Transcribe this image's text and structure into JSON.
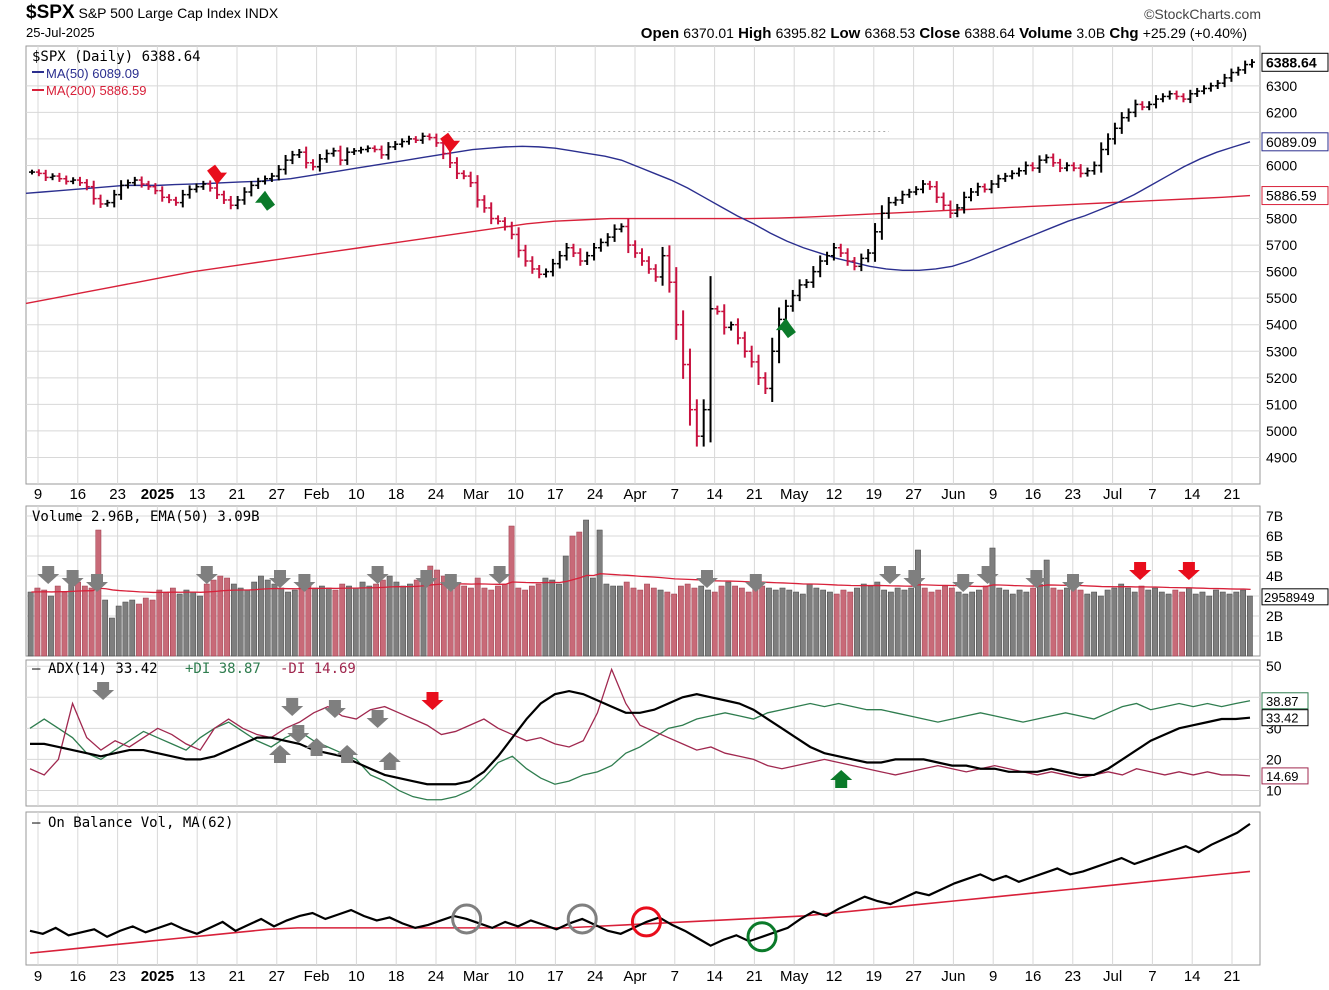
{
  "header": {
    "symbol": "$SPX",
    "name": "S&P 500 Large Cap Index",
    "exchange": "INDX",
    "date": "25-Jul-2025",
    "brand": "©StockCharts.com",
    "open_label": "Open",
    "open": "6370.01",
    "high_label": "High",
    "high": "6395.82",
    "low_label": "Low",
    "low": "6368.53",
    "close_label": "Close",
    "close": "6388.64",
    "volume_label": "Volume",
    "volume": "3.0B",
    "chg_label": "Chg",
    "chg": "+25.29 (+0.40%)"
  },
  "colors": {
    "up": "#000000",
    "down": "#c8103e",
    "ma50": "#2b2f8f",
    "ma200": "#d8213a",
    "plusdi": "#2f7d4f",
    "minusdi": "#a0284f",
    "vol_down": "#c86a78",
    "vol_up": "#7f7f7f",
    "grid": "#d8d8d8",
    "buy": "#0b7a2a",
    "sell": "#e80d1c"
  },
  "chart_data": [
    {
      "type": "ohlc",
      "panel": "price",
      "legend": [
        "$SPX (Daily) 6388.64",
        "MA(50) 6089.09",
        "MA(200) 5886.59"
      ],
      "ylim": [
        4800,
        6450
      ],
      "y_ticks": [
        "4900",
        "5000",
        "5100",
        "5200",
        "5300",
        "5400",
        "5500",
        "5600",
        "5700",
        "5800",
        "6000",
        "6100",
        "6200",
        "6300"
      ],
      "last_labels": [
        "6388.64",
        "6089.09",
        "5886.59"
      ],
      "last_values": [
        6388.64,
        6089.09,
        5886.59
      ],
      "x_ticks": [
        "9",
        "16",
        "23",
        "2025",
        "13",
        "21",
        "27",
        "Feb",
        "10",
        "18",
        "24",
        "Mar",
        "10",
        "17",
        "24",
        "Apr",
        "7",
        "14",
        "21",
        "May",
        "12",
        "19",
        "27",
        "Jun",
        "9",
        "16",
        "23",
        "Jul",
        "7",
        "14",
        "21"
      ],
      "closes": [
        5975,
        5970,
        5955,
        5960,
        5950,
        5940,
        5945,
        5935,
        5920,
        5875,
        5855,
        5860,
        5890,
        5925,
        5935,
        5945,
        5930,
        5920,
        5905,
        5880,
        5870,
        5860,
        5890,
        5910,
        5920,
        5930,
        5915,
        5890,
        5870,
        5850,
        5870,
        5900,
        5925,
        5940,
        5950,
        5960,
        5985,
        6020,
        6040,
        6050,
        6010,
        5995,
        6025,
        6045,
        6055,
        6020,
        6050,
        6055,
        6060,
        6065,
        6060,
        6040,
        6070,
        6080,
        6090,
        6100,
        6095,
        6110,
        6105,
        6085,
        6045,
        6010,
        5970,
        5960,
        5935,
        5870,
        5840,
        5800,
        5790,
        5770,
        5740,
        5680,
        5640,
        5610,
        5590,
        5600,
        5630,
        5660,
        5690,
        5670,
        5640,
        5660,
        5690,
        5710,
        5730,
        5760,
        5770,
        5700,
        5670,
        5640,
        5610,
        5580,
        5660,
        5560,
        5400,
        5250,
        5080,
        4980,
        5080,
        5460,
        5450,
        5390,
        5400,
        5350,
        5300,
        5260,
        5200,
        5160,
        5300,
        5420,
        5470,
        5510,
        5550,
        5560,
        5600,
        5640,
        5660,
        5690,
        5670,
        5640,
        5620,
        5650,
        5670,
        5750,
        5820,
        5860,
        5870,
        5890,
        5900,
        5910,
        5930,
        5920,
        5880,
        5850,
        5820,
        5840,
        5880,
        5900,
        5920,
        5910,
        5930,
        5950,
        5960,
        5970,
        5980,
        6000,
        5990,
        6020,
        6030,
        6010,
        5990,
        6000,
        5990,
        5970,
        5980,
        6000,
        6060,
        6100,
        6140,
        6180,
        6200,
        6230,
        6220,
        6230,
        6250,
        6260,
        6270,
        6260,
        6250,
        6270,
        6280,
        6290,
        6300,
        6310,
        6330,
        6350,
        6360,
        6380,
        6389
      ],
      "ma50": [
        5895,
        5900,
        5905,
        5910,
        5915,
        5920,
        5925,
        5925,
        5925,
        5928,
        5930,
        5932,
        5935,
        5938,
        5940,
        5945,
        5950,
        5960,
        5970,
        5980,
        5990,
        6000,
        6010,
        6020,
        6030,
        6040,
        6050,
        6060,
        6065,
        6070,
        6072,
        6070,
        6065,
        6055,
        6045,
        6035,
        6020,
        5995,
        5970,
        5945,
        5915,
        5880,
        5845,
        5810,
        5780,
        5745,
        5715,
        5690,
        5670,
        5650,
        5635,
        5620,
        5610,
        5605,
        5605,
        5610,
        5620,
        5640,
        5665,
        5690,
        5715,
        5740,
        5765,
        5790,
        5810,
        5835,
        5860,
        5890,
        5925,
        5960,
        5995,
        6025,
        6050,
        6070,
        6089
      ],
      "ma200": [
        5480,
        5500,
        5520,
        5540,
        5560,
        5580,
        5600,
        5615,
        5630,
        5645,
        5660,
        5675,
        5690,
        5705,
        5720,
        5735,
        5750,
        5765,
        5780,
        5790,
        5795,
        5800,
        5800,
        5800,
        5800,
        5800,
        5800,
        5802,
        5805,
        5810,
        5815,
        5820,
        5825,
        5830,
        5835,
        5840,
        5845,
        5850,
        5855,
        5860,
        5865,
        5870,
        5875,
        5880,
        5886.59
      ],
      "signals": [
        {
          "type": "sell",
          "at": 0.15
        },
        {
          "type": "buy",
          "at": 0.19
        },
        {
          "type": "sell",
          "at": 0.34
        },
        {
          "type": "buy",
          "at": 0.62
        }
      ]
    },
    {
      "type": "bar",
      "panel": "volume",
      "legend": "Volume 2.96B, EMA(50) 3.09B",
      "ylim": [
        0,
        7.5
      ],
      "y_ticks": [
        "1B",
        "2B",
        "3B",
        "4B",
        "5B",
        "6B",
        "7B"
      ],
      "last_label": "2958949",
      "last_value": 2.958949,
      "values": [
        3.2,
        3.4,
        3.3,
        3.0,
        3.5,
        3.2,
        3.6,
        3.7,
        3.5,
        3.4,
        6.3,
        2.8,
        1.9,
        2.5,
        2.7,
        2.8,
        2.6,
        2.9,
        2.8,
        3.3,
        3.2,
        3.4,
        3.1,
        3.3,
        3.2,
        3.0,
        3.6,
        3.8,
        4.0,
        3.9,
        3.6,
        3.4,
        3.3,
        3.7,
        4.0,
        3.8,
        3.6,
        3.4,
        3.2,
        3.3,
        3.5,
        3.6,
        3.4,
        3.5,
        3.4,
        3.3,
        3.6,
        3.5,
        3.4,
        3.7,
        3.5,
        3.6,
        3.8,
        4.0,
        3.7,
        3.5,
        3.6,
        3.8,
        4.2,
        4.5,
        4.3,
        4.0,
        3.8,
        3.6,
        3.5,
        3.4,
        3.9,
        3.4,
        3.3,
        3.5,
        3.6,
        6.5,
        3.4,
        3.3,
        3.5,
        3.6,
        3.9,
        3.8,
        3.6,
        5.0,
        6.0,
        6.2,
        6.8,
        3.9,
        6.3,
        3.6,
        3.5,
        3.5,
        3.7,
        3.4,
        3.3,
        3.6,
        3.4,
        3.3,
        3.2,
        3.1,
        3.5,
        3.6,
        3.4,
        3.5,
        3.3,
        3.2,
        3.5,
        3.7,
        3.5,
        3.4,
        3.2,
        3.6,
        3.5,
        3.4,
        3.3,
        3.4,
        3.3,
        3.2,
        3.1,
        3.6,
        3.4,
        3.3,
        3.2,
        3.1,
        3.3,
        3.2,
        3.4,
        3.6,
        3.5,
        3.7,
        3.3,
        3.2,
        3.4,
        3.3,
        3.4,
        5.3,
        3.4,
        3.2,
        3.3,
        3.5,
        3.4,
        3.2,
        3.1,
        3.2,
        3.3,
        3.5,
        5.4,
        3.4,
        3.3,
        3.1,
        3.3,
        3.2,
        3.4,
        3.6,
        4.8,
        3.4,
        3.3,
        3.4,
        3.5,
        3.3,
        3.1,
        3.2,
        3.0,
        3.3,
        3.4,
        3.6,
        3.4,
        3.2,
        3.5,
        3.3,
        3.4,
        3.2,
        3.1,
        3.3,
        3.2,
        3.4,
        3.1,
        3.2,
        3.0,
        3.3,
        3.2,
        3.1,
        3.2,
        3.3,
        3.0
      ]
    },
    {
      "type": "line",
      "panel": "adx",
      "legend": [
        "ADX(14) 33.42",
        "+DI 38.87",
        "-DI 14.69"
      ],
      "ylim": [
        5,
        52
      ],
      "y_ticks": [
        "10",
        "20",
        "30",
        "40",
        "50"
      ],
      "last_labels": [
        "38.87",
        "33.42",
        "14.69"
      ],
      "last_values": [
        38.87,
        33.42,
        14.69
      ],
      "adx": [
        25,
        25,
        24,
        23,
        22,
        21,
        22,
        23,
        23,
        22,
        21,
        20,
        20,
        21,
        23,
        25,
        27,
        27,
        26,
        25,
        23,
        22,
        21,
        19,
        17,
        15,
        14,
        13,
        12,
        12,
        12,
        13,
        16,
        21,
        27,
        33,
        38,
        41,
        42,
        41,
        39,
        37,
        35,
        35,
        36,
        38,
        40,
        41,
        40,
        39,
        38,
        36,
        33,
        30,
        27,
        24,
        22,
        21,
        20,
        19,
        19,
        20,
        20,
        20,
        19,
        18,
        18,
        17,
        17,
        16,
        16,
        16,
        17,
        16,
        15,
        15,
        17,
        20,
        23,
        26,
        28,
        30,
        31,
        32,
        33,
        33,
        33.42
      ],
      "plusdi": [
        30,
        33,
        30,
        27,
        22,
        20,
        23,
        26,
        29,
        27,
        25,
        23,
        27,
        30,
        32,
        29,
        26,
        24,
        27,
        29,
        26,
        24,
        22,
        20,
        15,
        13,
        10,
        8,
        7,
        7,
        8,
        10,
        14,
        19,
        21,
        17,
        14,
        12,
        13,
        15,
        16,
        18,
        22,
        24,
        27,
        30,
        31,
        33,
        34,
        35,
        34,
        33,
        35,
        36,
        37,
        38,
        37,
        38,
        37,
        36,
        36,
        35,
        34,
        33,
        32,
        33,
        34,
        35,
        34,
        33,
        32,
        33,
        34,
        35,
        34,
        33,
        35,
        37,
        38,
        36,
        37,
        38,
        37,
        38,
        37,
        38,
        38.87
      ],
      "minusdi": [
        17,
        15,
        20,
        38,
        27,
        23,
        26,
        24,
        27,
        30,
        28,
        25,
        23,
        30,
        33,
        30,
        28,
        27,
        30,
        32,
        35,
        37,
        34,
        33,
        36,
        37,
        35,
        33,
        31,
        28,
        29,
        31,
        33,
        30,
        28,
        26,
        27,
        25,
        24,
        26,
        35,
        49,
        38,
        31,
        29,
        27,
        25,
        23,
        24,
        22,
        21,
        20,
        18,
        17,
        18,
        19,
        20,
        19,
        18,
        17,
        16,
        15,
        16,
        17,
        18,
        17,
        16,
        17,
        18,
        17,
        16,
        15,
        16,
        15,
        14,
        15,
        16,
        15,
        17,
        16,
        15,
        16,
        15,
        16,
        15,
        15,
        14.69
      ]
    },
    {
      "type": "line",
      "panel": "obv",
      "legend": "On Balance Vol, MA(62)",
      "x_ticks": [
        "9",
        "16",
        "23",
        "2025",
        "13",
        "21",
        "27",
        "Feb",
        "10",
        "18",
        "24",
        "Mar",
        "10",
        "17",
        "24",
        "Apr",
        "7",
        "14",
        "21",
        "May",
        "12",
        "19",
        "27",
        "Jun",
        "9",
        "16",
        "23",
        "Jul",
        "7",
        "14",
        "21"
      ],
      "obv": [
        50,
        48,
        52,
        47,
        49,
        51,
        46,
        50,
        53,
        49,
        52,
        55,
        51,
        48,
        52,
        56,
        50,
        54,
        58,
        53,
        57,
        60,
        62,
        58,
        61,
        64,
        60,
        57,
        59,
        55,
        52,
        54,
        57,
        60,
        58,
        55,
        52,
        56,
        53,
        57,
        54,
        51,
        55,
        58,
        54,
        50,
        48,
        52,
        56,
        59,
        54,
        50,
        45,
        40,
        44,
        47,
        43,
        46,
        49,
        52,
        58,
        63,
        60,
        65,
        69,
        73,
        70,
        68,
        72,
        76,
        74,
        78,
        82,
        85,
        88,
        84,
        87,
        83,
        86,
        89,
        92,
        88,
        90,
        93,
        96,
        99,
        95,
        98,
        101,
        104,
        107,
        103,
        108,
        112,
        116,
        122
      ],
      "ma62": [
        35,
        37,
        39,
        41,
        43,
        45,
        47,
        49,
        51,
        52,
        52,
        52,
        52,
        52,
        52,
        52,
        52,
        52,
        52,
        53,
        54,
        55,
        56,
        57,
        58,
        59,
        60,
        62,
        64,
        66,
        68,
        70,
        72,
        74,
        76,
        78,
        80,
        82,
        84,
        86,
        88,
        90
      ],
      "markers": [
        {
          "color": "gray",
          "at": 0.36
        },
        {
          "color": "gray",
          "at": 0.45
        },
        {
          "color": "red",
          "at": 0.51
        },
        {
          "color": "green",
          "at": 0.6
        }
      ]
    }
  ]
}
